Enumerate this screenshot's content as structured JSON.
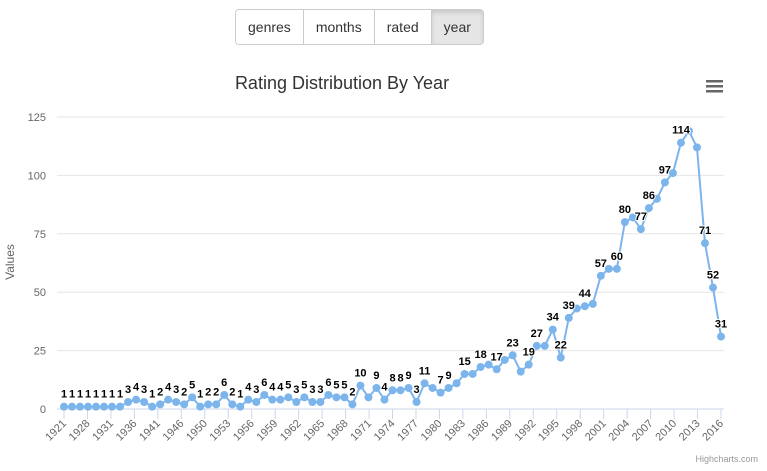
{
  "buttons": [
    {
      "label": "genres",
      "active": false
    },
    {
      "label": "months",
      "active": false
    },
    {
      "label": "rated",
      "active": false
    },
    {
      "label": "year",
      "active": true
    }
  ],
  "credits": "Highcharts.com",
  "colors": {
    "series": "#7cb5ec"
  },
  "icons": {
    "menu": "hamburger-menu-icon"
  },
  "chart_data": {
    "type": "line",
    "title": "Rating Distribution By Year",
    "ylabel": "Values",
    "xlabel": "",
    "ylim": [
      0,
      125
    ],
    "yticks": [
      0,
      25,
      50,
      75,
      100,
      125
    ],
    "xticks": [
      1921,
      1928,
      1931,
      1936,
      1941,
      1946,
      1950,
      1953,
      1956,
      1959,
      1962,
      1965,
      1968,
      1971,
      1974,
      1977,
      1980,
      1983,
      1986,
      1989,
      1992,
      1995,
      1998,
      2001,
      2004,
      2007,
      2010,
      2013,
      2016
    ],
    "grid": true,
    "legend": false,
    "series": [
      {
        "values": [
          1,
          1,
          1,
          1,
          1,
          1,
          1,
          1,
          3,
          4,
          3,
          1,
          2,
          4,
          3,
          2,
          5,
          1,
          2,
          2,
          6,
          2,
          1,
          4,
          3,
          6,
          4,
          4,
          5,
          3,
          5,
          3,
          3,
          6,
          5,
          5,
          2,
          10,
          5,
          9,
          4,
          8,
          8,
          9,
          3,
          11,
          9,
          7,
          9,
          11,
          15,
          15,
          18,
          19,
          17,
          21,
          23,
          16,
          19,
          27,
          27,
          34,
          22,
          39,
          43,
          44,
          45,
          57,
          60,
          60,
          80,
          82,
          77,
          86,
          90,
          97,
          101,
          114,
          119,
          112,
          71,
          52,
          31
        ],
        "labels": [
          "1",
          "1",
          "1",
          "1",
          "1",
          "1",
          "1",
          "1",
          "3",
          "4",
          "3",
          "1",
          "2",
          "4",
          "3",
          "2",
          "5",
          "1",
          "2",
          "2",
          "6",
          "2",
          "1",
          "4",
          "3",
          "6",
          "4",
          "4",
          "5",
          "3",
          "5",
          "3",
          "3",
          "6",
          "5",
          "5",
          "2",
          "10",
          "",
          "9",
          "4",
          "8",
          "8",
          "9",
          "3",
          "11",
          "",
          "7",
          "9",
          "",
          "15",
          "",
          "18",
          "",
          "17",
          "",
          "23",
          "",
          "19",
          "27",
          "",
          "34",
          "22",
          "39",
          "",
          "44",
          "",
          "57",
          "",
          "60",
          "80",
          "",
          "77",
          "86",
          "",
          "97",
          "",
          "114",
          "",
          "",
          "71",
          "52",
          "31"
        ]
      }
    ]
  }
}
